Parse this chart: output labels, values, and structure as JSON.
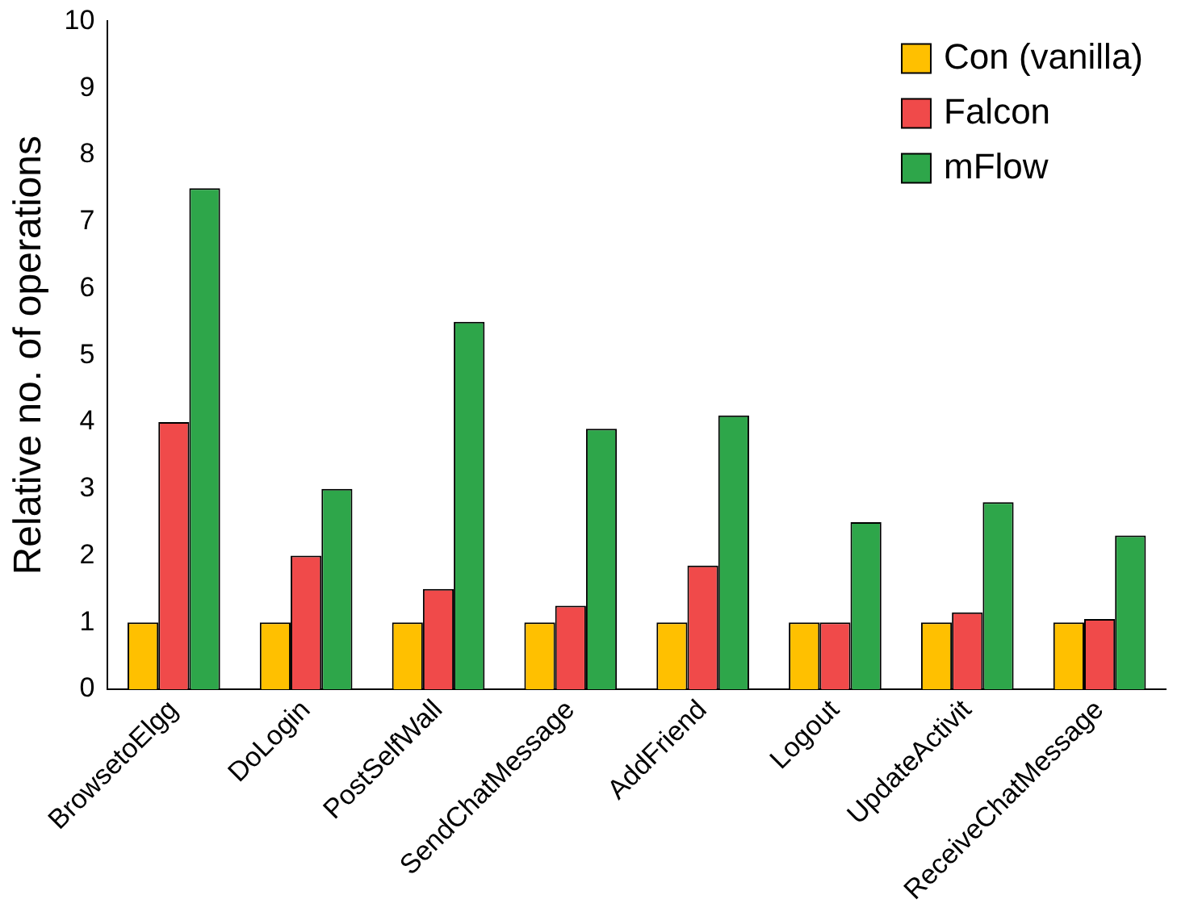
{
  "chart_data": {
    "type": "bar",
    "ylabel": "Relative no. of operations",
    "categories": [
      "BrowsetoElgg",
      "DoLogin",
      "PostSelfWall",
      "SendChatMessage",
      "AddFriend",
      "Logout",
      "UpdateActivit",
      "ReceiveChatMessage"
    ],
    "series": [
      {
        "name": "Con (vanilla)",
        "color": "#ffc000",
        "values": [
          1,
          1,
          1,
          1,
          1,
          1,
          1,
          1
        ]
      },
      {
        "name": "Falcon",
        "color": "#f04a4a",
        "values": [
          4,
          2,
          1.5,
          1.25,
          1.85,
          1,
          1.15,
          1.05
        ]
      },
      {
        "name": "mFlow",
        "color": "#2ea64a",
        "values": [
          7.5,
          3,
          5.5,
          3.9,
          4.1,
          2.5,
          2.8,
          2.3
        ]
      }
    ],
    "ylim": [
      0,
      10
    ],
    "yticks": [
      0,
      1,
      2,
      3,
      4,
      5,
      6,
      7,
      8,
      9,
      10
    ],
    "grid": false,
    "legend": "top right"
  }
}
